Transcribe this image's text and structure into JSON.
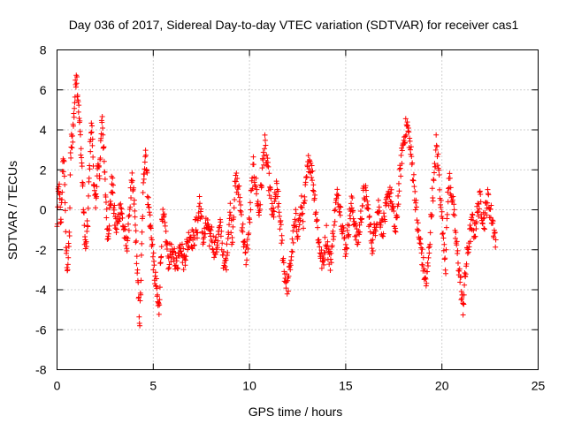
{
  "chart_data": {
    "type": "scatter",
    "title": "Day 036 of 2017, Sidereal Day-to-day VTEC variation (SDTVAR) for receiver cas1",
    "xlabel": "GPS time / hours",
    "ylabel": "SDTVAR / TECUs",
    "xlim": [
      0,
      25
    ],
    "ylim": [
      -8,
      8
    ],
    "xticks": [
      0,
      5,
      10,
      15,
      20,
      25
    ],
    "yticks": [
      -8,
      -6,
      -4,
      -2,
      0,
      2,
      4,
      6,
      8
    ],
    "grid": true,
    "marker": "+",
    "color": "#ff0000",
    "series": [
      {
        "name": "SDTVAR",
        "trace": [
          [
            0.0,
            -1.0
          ],
          [
            0.05,
            0.5
          ],
          [
            0.1,
            1.2
          ],
          [
            0.15,
            0.2
          ],
          [
            0.2,
            -0.8
          ],
          [
            0.25,
            0.8
          ],
          [
            0.3,
            2.0
          ],
          [
            0.35,
            2.5
          ],
          [
            0.4,
            1.5
          ],
          [
            0.45,
            -1.5
          ],
          [
            0.5,
            -2.4
          ],
          [
            0.55,
            -2.8
          ],
          [
            0.6,
            -2.2
          ],
          [
            0.65,
            -1.0
          ],
          [
            0.7,
            2.5
          ],
          [
            0.75,
            3.4
          ],
          [
            0.8,
            3.6
          ],
          [
            0.85,
            4.3
          ],
          [
            0.9,
            5.2
          ],
          [
            0.95,
            6.0
          ],
          [
            1.0,
            7.0
          ],
          [
            1.05,
            6.2
          ],
          [
            1.1,
            5.5
          ],
          [
            1.15,
            4.6
          ],
          [
            1.2,
            3.8
          ],
          [
            1.25,
            3.0
          ],
          [
            1.3,
            2.0
          ],
          [
            1.35,
            0.8
          ],
          [
            1.4,
            -0.6
          ],
          [
            1.45,
            -1.5
          ],
          [
            1.5,
            -2.0
          ],
          [
            1.55,
            -1.4
          ],
          [
            1.6,
            -0.5
          ],
          [
            1.65,
            1.0
          ],
          [
            1.7,
            2.5
          ],
          [
            1.75,
            3.8
          ],
          [
            1.8,
            4.1
          ],
          [
            1.85,
            3.2
          ],
          [
            1.9,
            1.8
          ],
          [
            1.95,
            0.6
          ],
          [
            2.0,
            0.0
          ],
          [
            2.05,
            1.2
          ],
          [
            2.1,
            1.9
          ],
          [
            2.15,
            2.2
          ],
          [
            2.2,
            1.5
          ],
          [
            2.25,
            2.9
          ],
          [
            2.3,
            4.0
          ],
          [
            2.35,
            4.8
          ],
          [
            2.4,
            3.5
          ],
          [
            2.45,
            2.2
          ],
          [
            2.5,
            1.2
          ],
          [
            2.55,
            0.4
          ],
          [
            2.6,
            -0.8
          ],
          [
            2.65,
            -1.2
          ],
          [
            2.7,
            -0.6
          ],
          [
            2.75,
            0.0
          ],
          [
            2.8,
            0.6
          ],
          [
            2.85,
            1.5
          ],
          [
            2.9,
            1.0
          ],
          [
            2.95,
            0.1
          ],
          [
            3.0,
            -0.5
          ],
          [
            3.1,
            -1.0
          ],
          [
            3.2,
            -0.3
          ],
          [
            3.3,
            0.3
          ],
          [
            3.4,
            -0.5
          ],
          [
            3.5,
            -1.2
          ],
          [
            3.6,
            -1.8
          ],
          [
            3.7,
            -1.2
          ],
          [
            3.8,
            0.5
          ],
          [
            3.9,
            1.3
          ],
          [
            4.0,
            0.5
          ],
          [
            4.05,
            -0.5
          ],
          [
            4.1,
            -1.5
          ],
          [
            4.15,
            -2.5
          ],
          [
            4.2,
            -3.8
          ],
          [
            4.25,
            -4.8
          ],
          [
            4.3,
            -5.5
          ],
          [
            4.35,
            -4.0
          ],
          [
            4.4,
            -2.0
          ],
          [
            4.45,
            0.0
          ],
          [
            4.5,
            1.5
          ],
          [
            4.55,
            2.5
          ],
          [
            4.6,
            3.0
          ],
          [
            4.65,
            2.2
          ],
          [
            4.7,
            1.0
          ],
          [
            4.75,
            0.3
          ],
          [
            4.8,
            -0.2
          ],
          [
            4.85,
            -0.8
          ],
          [
            4.9,
            -1.2
          ],
          [
            4.95,
            -1.8
          ],
          [
            5.0,
            -2.5
          ],
          [
            5.05,
            -3.1
          ],
          [
            5.1,
            -3.5
          ],
          [
            5.15,
            -3.8
          ],
          [
            5.2,
            -4.3
          ],
          [
            5.25,
            -4.8
          ],
          [
            5.3,
            -5.0
          ],
          [
            5.35,
            -3.5
          ],
          [
            5.4,
            -2.2
          ],
          [
            5.45,
            -1.0
          ],
          [
            5.5,
            -0.5
          ],
          [
            5.6,
            -0.8
          ],
          [
            5.7,
            -1.8
          ],
          [
            5.8,
            -2.6
          ],
          [
            5.9,
            -2.0
          ],
          [
            6.0,
            -2.5
          ],
          [
            6.1,
            -2.2
          ],
          [
            6.2,
            -2.8
          ],
          [
            6.3,
            -2.4
          ],
          [
            6.4,
            -1.5
          ],
          [
            6.5,
            -2.1
          ],
          [
            6.6,
            -2.6
          ],
          [
            6.7,
            -2.0
          ],
          [
            6.9,
            -1.2
          ],
          [
            7.1,
            -1.6
          ],
          [
            7.2,
            -0.8
          ],
          [
            7.3,
            -1.0
          ],
          [
            7.4,
            0.5
          ],
          [
            7.5,
            -0.6
          ],
          [
            7.6,
            -1.5
          ],
          [
            7.7,
            -1.1
          ],
          [
            7.8,
            -0.7
          ],
          [
            7.9,
            -1.5
          ],
          [
            8.0,
            -1.0
          ],
          [
            8.1,
            -1.6
          ],
          [
            8.2,
            -2.0
          ],
          [
            8.3,
            -1.8
          ],
          [
            8.4,
            -1.2
          ],
          [
            8.5,
            -0.9
          ],
          [
            8.6,
            -2.0
          ],
          [
            8.7,
            -3.0
          ],
          [
            8.8,
            -2.5
          ],
          [
            8.9,
            -1.0
          ],
          [
            9.0,
            0.0
          ],
          [
            9.1,
            -1.5
          ],
          [
            9.2,
            0.5
          ],
          [
            9.3,
            1.5
          ],
          [
            9.4,
            1.1
          ],
          [
            9.5,
            0.5
          ],
          [
            9.6,
            -0.5
          ],
          [
            9.7,
            -1.5
          ],
          [
            9.8,
            -2.5
          ],
          [
            9.9,
            -1.8
          ],
          [
            10.0,
            -0.6
          ],
          [
            10.1,
            0.8
          ],
          [
            10.2,
            2.1
          ],
          [
            10.3,
            1.5
          ],
          [
            10.4,
            0.6
          ],
          [
            10.5,
            -0.2
          ],
          [
            10.6,
            1.0
          ],
          [
            10.7,
            2.5
          ],
          [
            10.8,
            3.2
          ],
          [
            10.9,
            2.4
          ],
          [
            11.0,
            1.5
          ],
          [
            11.1,
            0.6
          ],
          [
            11.2,
            -0.4
          ],
          [
            11.3,
            0.2
          ],
          [
            11.4,
            1.0
          ],
          [
            11.5,
            0.4
          ],
          [
            11.6,
            -0.8
          ],
          [
            11.7,
            -1.8
          ],
          [
            11.8,
            -3.0
          ],
          [
            11.9,
            -3.6
          ],
          [
            12.0,
            -3.8
          ],
          [
            12.1,
            -3.0
          ],
          [
            12.2,
            -2.0
          ],
          [
            12.3,
            -1.2
          ],
          [
            12.4,
            -0.5
          ],
          [
            12.5,
            -1.0
          ],
          [
            12.6,
            -0.6
          ],
          [
            12.7,
            0.2
          ],
          [
            12.8,
            -0.4
          ],
          [
            12.9,
            0.8
          ],
          [
            13.0,
            1.8
          ],
          [
            13.1,
            2.6
          ],
          [
            13.2,
            2.2
          ],
          [
            13.3,
            1.4
          ],
          [
            13.4,
            0.5
          ],
          [
            13.5,
            -0.5
          ],
          [
            13.6,
            -1.6
          ],
          [
            13.7,
            -2.2
          ],
          [
            13.8,
            -2.8
          ],
          [
            13.9,
            -2.0
          ],
          [
            14.0,
            -1.2
          ],
          [
            14.1,
            -2.2
          ],
          [
            14.2,
            -2.6
          ],
          [
            14.3,
            -1.8
          ],
          [
            14.4,
            -0.6
          ],
          [
            14.5,
            0.3
          ],
          [
            14.6,
            0.8
          ],
          [
            14.7,
            0.2
          ],
          [
            14.8,
            -0.6
          ],
          [
            14.9,
            -1.3
          ],
          [
            15.0,
            -2.0
          ],
          [
            15.1,
            -1.2
          ],
          [
            15.2,
            -0.4
          ],
          [
            15.3,
            0.3
          ],
          [
            15.4,
            -0.2
          ],
          [
            15.5,
            -1.0
          ],
          [
            15.6,
            -1.6
          ],
          [
            15.7,
            -1.1
          ],
          [
            15.8,
            -0.3
          ],
          [
            15.9,
            0.6
          ],
          [
            16.0,
            0.9
          ],
          [
            16.1,
            0.4
          ],
          [
            16.2,
            -0.3
          ],
          [
            16.3,
            -1.2
          ],
          [
            16.4,
            -1.8
          ],
          [
            16.5,
            -1.0
          ],
          [
            16.6,
            -0.4
          ],
          [
            16.7,
            0.2
          ],
          [
            16.8,
            -0.4
          ],
          [
            16.9,
            -1.0
          ],
          [
            17.0,
            -0.5
          ],
          [
            17.1,
            0.0
          ],
          [
            17.2,
            0.5
          ],
          [
            17.3,
            1.0
          ],
          [
            17.4,
            0.4
          ],
          [
            17.5,
            -0.5
          ],
          [
            17.6,
            -1.2
          ],
          [
            17.7,
            0.3
          ],
          [
            17.8,
            1.5
          ],
          [
            17.9,
            2.6
          ],
          [
            18.0,
            3.4
          ],
          [
            18.1,
            4.0
          ],
          [
            18.2,
            4.2
          ],
          [
            18.3,
            3.6
          ],
          [
            18.4,
            2.7
          ],
          [
            18.5,
            1.8
          ],
          [
            18.6,
            0.8
          ],
          [
            18.7,
            -0.5
          ],
          [
            18.8,
            -1.4
          ],
          [
            18.9,
            -1.8
          ],
          [
            19.0,
            -2.6
          ],
          [
            19.1,
            -3.3
          ],
          [
            19.2,
            -3.7
          ],
          [
            19.3,
            -2.5
          ],
          [
            19.4,
            -1.0
          ],
          [
            19.5,
            0.6
          ],
          [
            19.6,
            1.5
          ],
          [
            19.7,
            3.3
          ],
          [
            19.8,
            2.4
          ],
          [
            19.9,
            1.0
          ],
          [
            20.0,
            -0.5
          ],
          [
            20.1,
            -1.5
          ],
          [
            20.2,
            -2.8
          ],
          [
            20.3,
            0.7
          ],
          [
            20.4,
            1.5
          ],
          [
            20.5,
            0.9
          ],
          [
            20.6,
            0.0
          ],
          [
            20.7,
            -1.2
          ],
          [
            20.8,
            -2.2
          ],
          [
            20.9,
            -3.0
          ],
          [
            21.0,
            -4.0
          ],
          [
            21.05,
            -4.6
          ],
          [
            21.1,
            -4.8
          ],
          [
            21.15,
            -4.2
          ],
          [
            21.2,
            -3.4
          ],
          [
            21.3,
            -2.4
          ],
          [
            21.4,
            -1.6
          ],
          [
            21.5,
            -1.0
          ],
          [
            21.6,
            -0.6
          ],
          [
            21.7,
            -1.2
          ],
          [
            21.8,
            -0.4
          ],
          [
            21.9,
            0.2
          ],
          [
            22.0,
            0.5
          ],
          [
            22.1,
            -0.2
          ],
          [
            22.2,
            -0.6
          ],
          [
            22.3,
            0.2
          ],
          [
            22.4,
            0.6
          ],
          [
            22.5,
            0.0
          ],
          [
            22.6,
            -0.4
          ],
          [
            22.7,
            -1.0
          ],
          [
            22.8,
            -1.5
          ]
        ]
      }
    ]
  }
}
